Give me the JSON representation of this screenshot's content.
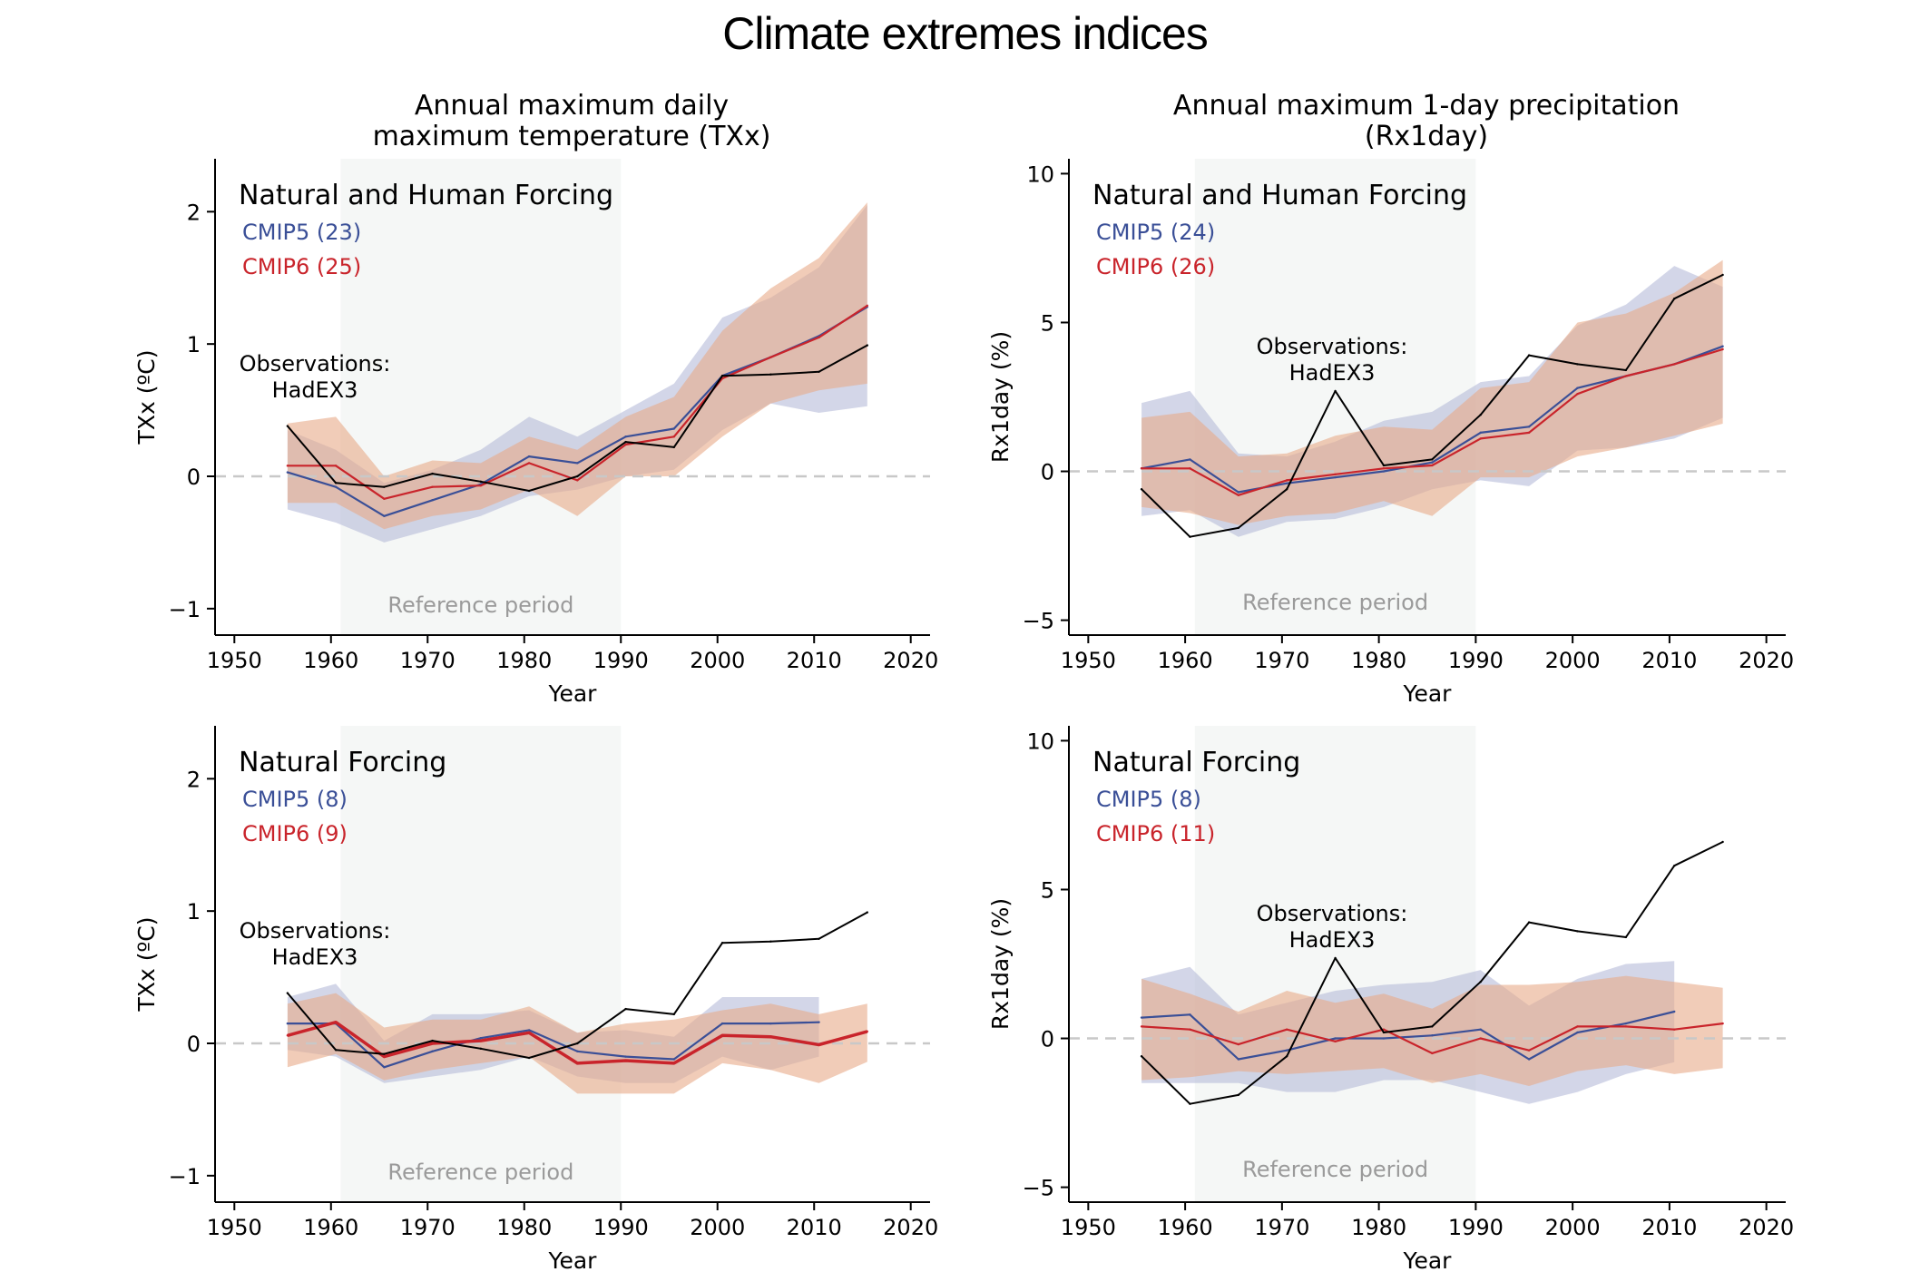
{
  "title": "Climate extremes indices",
  "column_titles": {
    "left": [
      "Annual maximum daily",
      "maximum temperature (TXx)"
    ],
    "right": [
      "Annual maximum 1-day precipitation",
      "(Rx1day)"
    ]
  },
  "colors": {
    "cmip5": "#3a4f97",
    "cmip6": "#c9242b",
    "cmip5_band": "#b6bad9",
    "cmip6_band": "#e8aa88",
    "observations": "#000000",
    "reference_shade": "#f5f7f6",
    "zero_line": "#c8c8c8",
    "reference_label": "#9a9a9a"
  },
  "chart_data": [
    {
      "type": "line",
      "panel": "top-left",
      "heading": "Natural and Human Forcing",
      "xlabel": "Year",
      "ylabel": "TXx (ºC)",
      "xlim": [
        1948,
        2022
      ],
      "ylim": [
        -1.2,
        2.4
      ],
      "xticks": [
        1950,
        1960,
        1970,
        1980,
        1990,
        2000,
        2010,
        2020
      ],
      "yticks": [
        -1,
        0,
        1,
        2
      ],
      "reference_period": [
        1961,
        1990
      ],
      "reference_label": "Reference period",
      "observations_label": [
        "Observations:",
        "HadEX3"
      ],
      "series": [
        {
          "name": "CMIP5 (23)",
          "key": "cmip5",
          "x": [
            1955.5,
            1960.5,
            1965.5,
            1970.5,
            1975.5,
            1980.5,
            1985.5,
            1990.5,
            1995.5,
            2000.5,
            2005.5,
            2010.5,
            2015.5
          ],
          "values": [
            0.03,
            -0.08,
            -0.3,
            -0.18,
            -0.06,
            0.15,
            0.1,
            0.3,
            0.36,
            0.76,
            0.9,
            1.06,
            1.28
          ],
          "lower": [
            -0.25,
            -0.35,
            -0.5,
            -0.4,
            -0.3,
            -0.15,
            -0.1,
            0.0,
            0.05,
            0.35,
            0.55,
            0.48,
            0.53
          ],
          "upper": [
            0.35,
            0.2,
            -0.05,
            0.05,
            0.2,
            0.45,
            0.3,
            0.5,
            0.7,
            1.2,
            1.35,
            1.58,
            2.05
          ]
        },
        {
          "name": "CMIP6 (25)",
          "key": "cmip6",
          "x": [
            1955.5,
            1960.5,
            1965.5,
            1970.5,
            1975.5,
            1980.5,
            1985.5,
            1990.5,
            1995.5,
            2000.5,
            2005.5,
            2010.5,
            2015.5
          ],
          "values": [
            0.08,
            0.08,
            -0.17,
            -0.08,
            -0.07,
            0.1,
            -0.03,
            0.24,
            0.3,
            0.74,
            0.9,
            1.05,
            1.29
          ],
          "lower": [
            -0.2,
            -0.2,
            -0.4,
            -0.3,
            -0.25,
            -0.1,
            -0.3,
            0.0,
            0.0,
            0.3,
            0.55,
            0.65,
            0.7
          ],
          "upper": [
            0.4,
            0.45,
            0.0,
            0.12,
            0.1,
            0.3,
            0.2,
            0.45,
            0.6,
            1.1,
            1.42,
            1.65,
            2.07
          ]
        },
        {
          "name": "Observations: HadEX3",
          "key": "observations",
          "x": [
            1955.5,
            1960.5,
            1965.5,
            1970.5,
            1975.5,
            1980.5,
            1985.5,
            1990.5,
            1995.5,
            2000.5,
            2005.5,
            2010.5,
            2015.5
          ],
          "values": [
            0.38,
            -0.05,
            -0.08,
            0.02,
            -0.04,
            -0.11,
            0.0,
            0.26,
            0.22,
            0.76,
            0.77,
            0.79,
            0.99
          ]
        }
      ]
    },
    {
      "type": "line",
      "panel": "top-right",
      "heading": "Natural and Human Forcing",
      "xlabel": "Year",
      "ylabel": "Rx1day (%)",
      "xlim": [
        1948,
        2022
      ],
      "ylim": [
        -5.5,
        10.5
      ],
      "xticks": [
        1950,
        1960,
        1970,
        1980,
        1990,
        2000,
        2010,
        2020
      ],
      "yticks": [
        -5,
        0,
        5,
        10
      ],
      "reference_period": [
        1961,
        1990
      ],
      "reference_label": "Reference period",
      "observations_label": [
        "Observations:",
        "HadEX3"
      ],
      "series": [
        {
          "name": "CMIP5 (24)",
          "key": "cmip5",
          "x": [
            1955.5,
            1960.5,
            1965.5,
            1970.5,
            1975.5,
            1980.5,
            1985.5,
            1990.5,
            1995.5,
            2000.5,
            2005.5,
            2010.5,
            2015.5
          ],
          "values": [
            0.1,
            0.4,
            -0.7,
            -0.4,
            -0.2,
            0.0,
            0.3,
            1.3,
            1.5,
            2.8,
            3.2,
            3.6,
            4.2
          ],
          "lower": [
            -1.5,
            -1.3,
            -2.2,
            -1.7,
            -1.6,
            -1.2,
            -0.6,
            -0.3,
            -0.5,
            0.7,
            0.8,
            1.1,
            1.8
          ],
          "upper": [
            2.3,
            2.7,
            0.6,
            0.5,
            1.0,
            1.7,
            2.0,
            3.0,
            3.2,
            4.9,
            5.6,
            6.9,
            6.2
          ]
        },
        {
          "name": "CMIP6 (26)",
          "key": "cmip6",
          "x": [
            1955.5,
            1960.5,
            1965.5,
            1970.5,
            1975.5,
            1980.5,
            1985.5,
            1990.5,
            1995.5,
            2000.5,
            2005.5,
            2010.5,
            2015.5
          ],
          "values": [
            0.1,
            0.1,
            -0.8,
            -0.3,
            -0.1,
            0.1,
            0.2,
            1.1,
            1.3,
            2.6,
            3.2,
            3.6,
            4.1
          ],
          "lower": [
            -1.2,
            -1.4,
            -1.8,
            -1.5,
            -1.4,
            -1.0,
            -1.5,
            -0.2,
            -0.2,
            0.5,
            0.8,
            1.2,
            1.6
          ],
          "upper": [
            1.8,
            2.0,
            0.5,
            0.6,
            1.2,
            1.5,
            1.4,
            2.8,
            3.0,
            5.0,
            5.3,
            6.0,
            7.1
          ]
        },
        {
          "name": "Observations: HadEX3",
          "key": "observations",
          "x": [
            1955.5,
            1960.5,
            1965.5,
            1970.5,
            1975.5,
            1980.5,
            1985.5,
            1990.5,
            1995.5,
            2000.5,
            2005.5,
            2010.5,
            2015.5
          ],
          "values": [
            -0.6,
            -2.2,
            -1.9,
            -0.6,
            2.7,
            0.2,
            0.4,
            1.9,
            3.9,
            3.6,
            3.4,
            5.8,
            6.6
          ]
        }
      ]
    },
    {
      "type": "line",
      "panel": "bottom-left",
      "heading": "Natural Forcing",
      "xlabel": "Year",
      "ylabel": "TXx (ºC)",
      "xlim": [
        1948,
        2022
      ],
      "ylim": [
        -1.2,
        2.4
      ],
      "xticks": [
        1950,
        1960,
        1970,
        1980,
        1990,
        2000,
        2010,
        2020
      ],
      "yticks": [
        -1,
        0,
        1,
        2
      ],
      "reference_period": [
        1961,
        1990
      ],
      "reference_label": "Reference period",
      "observations_label": [
        "Observations:",
        "HadEX3"
      ],
      "series": [
        {
          "name": "CMIP5 (8)",
          "key": "cmip5",
          "x": [
            1955.5,
            1960.5,
            1965.5,
            1970.5,
            1975.5,
            1980.5,
            1985.5,
            1990.5,
            1995.5,
            2000.5,
            2005.5,
            2010.5
          ],
          "values": [
            0.15,
            0.15,
            -0.18,
            -0.06,
            0.04,
            0.1,
            -0.06,
            -0.1,
            -0.12,
            0.15,
            0.15,
            0.16
          ],
          "lower": [
            -0.05,
            -0.1,
            -0.3,
            -0.25,
            -0.2,
            -0.1,
            -0.25,
            -0.3,
            -0.3,
            -0.1,
            -0.2,
            -0.1
          ],
          "upper": [
            0.35,
            0.45,
            0.02,
            0.22,
            0.22,
            0.25,
            0.08,
            0.1,
            0.05,
            0.35,
            0.35,
            0.35
          ]
        },
        {
          "name": "CMIP6 (9)",
          "key": "cmip6",
          "x": [
            1955.5,
            1960.5,
            1965.5,
            1970.5,
            1975.5,
            1980.5,
            1985.5,
            1990.5,
            1995.5,
            2000.5,
            2005.5,
            2010.5,
            2015.5
          ],
          "values": [
            0.06,
            0.16,
            -0.1,
            0.0,
            0.02,
            0.08,
            -0.15,
            -0.13,
            -0.15,
            0.06,
            0.05,
            -0.01,
            0.09
          ],
          "lower": [
            -0.18,
            -0.08,
            -0.28,
            -0.2,
            -0.15,
            -0.1,
            -0.38,
            -0.38,
            -0.38,
            -0.15,
            -0.2,
            -0.3,
            -0.14
          ],
          "upper": [
            0.3,
            0.38,
            0.12,
            0.18,
            0.18,
            0.28,
            0.08,
            0.15,
            0.18,
            0.25,
            0.3,
            0.22,
            0.3
          ]
        },
        {
          "name": "Observations: HadEX3",
          "key": "observations",
          "x": [
            1955.5,
            1960.5,
            1965.5,
            1970.5,
            1975.5,
            1980.5,
            1985.5,
            1990.5,
            1995.5,
            2000.5,
            2005.5,
            2010.5,
            2015.5
          ],
          "values": [
            0.38,
            -0.05,
            -0.08,
            0.02,
            -0.04,
            -0.11,
            0.0,
            0.26,
            0.22,
            0.76,
            0.77,
            0.79,
            0.99
          ]
        }
      ]
    },
    {
      "type": "line",
      "panel": "bottom-right",
      "heading": "Natural Forcing",
      "xlabel": "Year",
      "ylabel": "Rx1day (%)",
      "xlim": [
        1948,
        2022
      ],
      "ylim": [
        -5.5,
        10.5
      ],
      "xticks": [
        1950,
        1960,
        1970,
        1980,
        1990,
        2000,
        2010,
        2020
      ],
      "yticks": [
        -5,
        0,
        5,
        10
      ],
      "reference_period": [
        1961,
        1990
      ],
      "reference_label": "Reference period",
      "observations_label": [
        "Observations:",
        "HadEX3"
      ],
      "series": [
        {
          "name": "CMIP5 (8)",
          "key": "cmip5",
          "x": [
            1955.5,
            1960.5,
            1965.5,
            1970.5,
            1975.5,
            1980.5,
            1985.5,
            1990.5,
            1995.5,
            2000.5,
            2005.5,
            2010.5
          ],
          "values": [
            0.7,
            0.8,
            -0.7,
            -0.4,
            0.0,
            0.0,
            0.1,
            0.3,
            -0.7,
            0.2,
            0.5,
            0.9
          ],
          "lower": [
            -1.5,
            -1.5,
            -1.5,
            -1.8,
            -1.8,
            -1.4,
            -1.4,
            -1.8,
            -2.2,
            -1.8,
            -1.2,
            -0.8
          ],
          "upper": [
            2.0,
            2.4,
            0.8,
            1.2,
            1.6,
            1.8,
            1.9,
            2.3,
            1.1,
            2.0,
            2.5,
            2.6
          ]
        },
        {
          "name": "CMIP6 (11)",
          "key": "cmip6",
          "x": [
            1955.5,
            1960.5,
            1965.5,
            1970.5,
            1975.5,
            1980.5,
            1985.5,
            1990.5,
            1995.5,
            2000.5,
            2005.5,
            2010.5,
            2015.5
          ],
          "values": [
            0.4,
            0.3,
            -0.2,
            0.3,
            -0.1,
            0.3,
            -0.5,
            0.0,
            -0.4,
            0.4,
            0.4,
            0.3,
            0.5
          ],
          "lower": [
            -1.4,
            -1.3,
            -1.1,
            -1.2,
            -1.1,
            -1.0,
            -1.5,
            -1.2,
            -1.6,
            -1.1,
            -0.9,
            -1.2,
            -1.0
          ],
          "upper": [
            2.0,
            1.5,
            0.9,
            1.6,
            1.2,
            1.5,
            1.0,
            1.8,
            1.8,
            1.9,
            2.1,
            1.9,
            1.7
          ]
        },
        {
          "name": "Observations: HadEX3",
          "key": "observations",
          "x": [
            1955.5,
            1960.5,
            1965.5,
            1970.5,
            1975.5,
            1980.5,
            1985.5,
            1990.5,
            1995.5,
            2000.5,
            2005.5,
            2010.5,
            2015.5
          ],
          "values": [
            -0.6,
            -2.2,
            -1.9,
            -0.6,
            2.7,
            0.2,
            0.4,
            1.9,
            3.9,
            3.6,
            3.4,
            5.8,
            6.6
          ]
        }
      ]
    }
  ]
}
